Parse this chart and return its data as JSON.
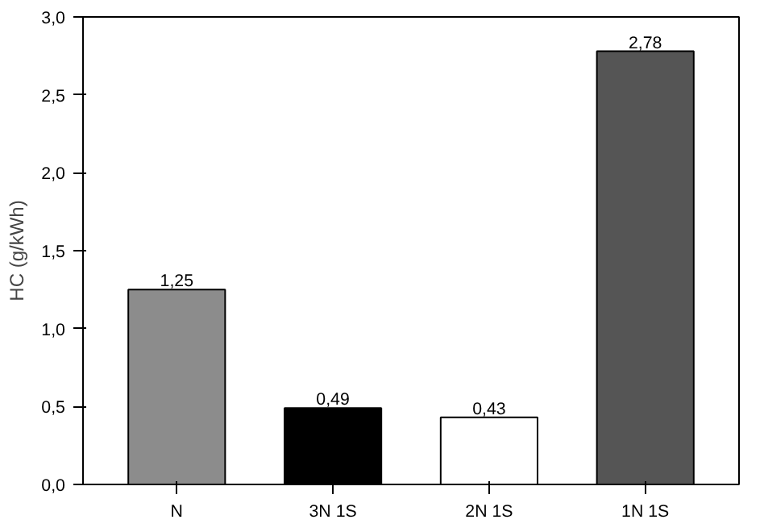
{
  "chart_data": {
    "type": "bar",
    "ylabel": "HC (g/kWh)",
    "categories": [
      "N",
      "3N 1S",
      "2N 1S",
      "1N 1S"
    ],
    "values": [
      1.25,
      0.49,
      0.43,
      2.78
    ],
    "value_labels": [
      "1,25",
      "0,49",
      "0,43",
      "2,78"
    ],
    "colors": [
      "#8c8c8c",
      "#000000",
      "#ffffff",
      "#555555"
    ],
    "ylim": [
      0,
      3.0
    ],
    "yticks": [
      {
        "value": 0,
        "label": "0,0"
      },
      {
        "value": 0.5,
        "label": "0,5"
      },
      {
        "value": 1.0,
        "label": "1,0"
      },
      {
        "value": 1.5,
        "label": "1,5"
      },
      {
        "value": 2.0,
        "label": "2,0"
      },
      {
        "value": 2.5,
        "label": "2,5"
      },
      {
        "value": 3.0,
        "label": "3,0"
      }
    ],
    "grid": false
  }
}
